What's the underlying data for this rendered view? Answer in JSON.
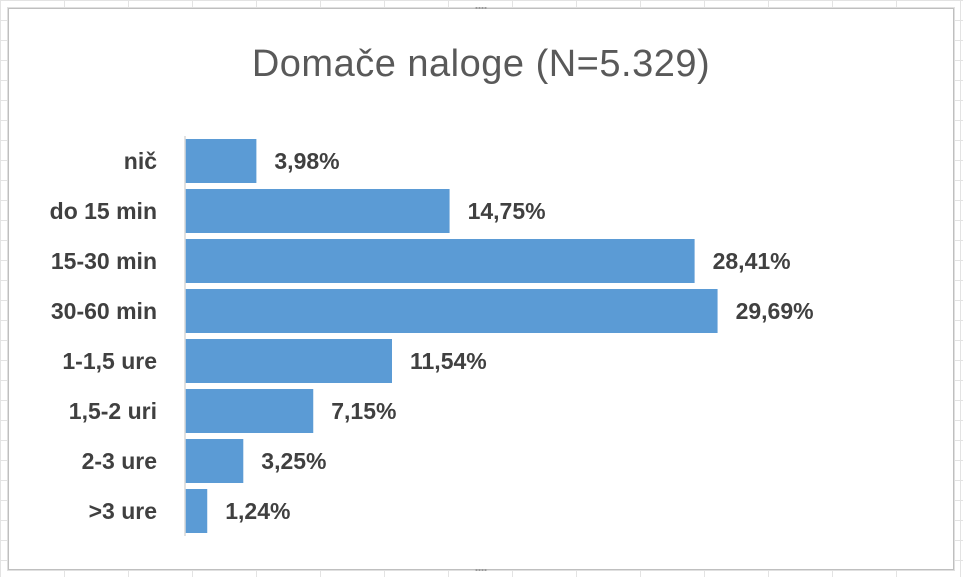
{
  "chart_data": {
    "type": "bar",
    "orientation": "horizontal",
    "title": "Domače naloge (N=5.329)",
    "categories": [
      "nič",
      "do 15 min",
      "15-30 min",
      "30-60 min",
      "1-1,5 ure",
      "1,5-2 uri",
      "2-3 ure",
      ">3 ure"
    ],
    "values": [
      3.98,
      14.75,
      28.41,
      29.69,
      11.54,
      7.15,
      3.25,
      1.24
    ],
    "data_labels": [
      "3,98%",
      "14,75%",
      "28,41%",
      "29,69%",
      "11,54%",
      "7,15%",
      "3,25%",
      "1,24%"
    ],
    "xlim": [
      0,
      32
    ],
    "grid": false,
    "legend": "none",
    "colors": {
      "bar": "#5b9bd5",
      "axis": "#d9d9d9",
      "category_text": "#404040",
      "label_text": "#404040",
      "title_text": "#595959"
    }
  }
}
